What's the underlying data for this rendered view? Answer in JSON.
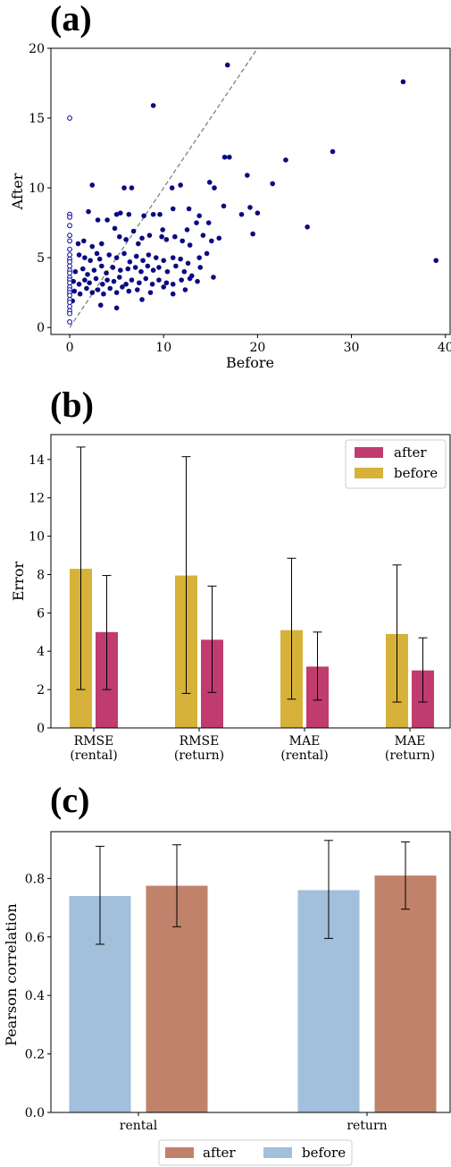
{
  "chart_data": [
    {
      "panel": "(a)",
      "type": "scatter",
      "xlabel": "Before",
      "ylabel": "After",
      "xlim": [
        -2,
        40.5
      ],
      "ylim": [
        -0.5,
        20
      ],
      "xticks": [
        0,
        10,
        20,
        30,
        40
      ],
      "yticks": [
        0,
        5,
        10,
        15,
        20
      ],
      "reference_line": "y = x (dashed, gray)",
      "colors": {
        "filled": "#0a0a82",
        "hollow_edge": "#1a1aa0"
      },
      "series": [
        {
          "marker": "filled",
          "points": [
            [
              16.8,
              18.8
            ],
            [
              35.5,
              17.6
            ],
            [
              8.9,
              15.9
            ],
            [
              28,
              12.6
            ],
            [
              16.5,
              12.2
            ],
            [
              17,
              12.2
            ],
            [
              23,
              12
            ],
            [
              18.9,
              10.9
            ],
            [
              2.4,
              10.2
            ],
            [
              5.8,
              10
            ],
            [
              6.6,
              10
            ],
            [
              10.9,
              10
            ],
            [
              11.8,
              10.2
            ],
            [
              14.9,
              10.4
            ],
            [
              21.6,
              10.3
            ],
            [
              15.4,
              10
            ],
            [
              8.9,
              8.1
            ],
            [
              9.6,
              8.1
            ],
            [
              2,
              8.3
            ],
            [
              3,
              7.7
            ],
            [
              4,
              7.7
            ],
            [
              5,
              8.1
            ],
            [
              5.4,
              8.2
            ],
            [
              6.3,
              8.1
            ],
            [
              7.9,
              8
            ],
            [
              12.7,
              8.5
            ],
            [
              13.8,
              8
            ],
            [
              14.8,
              7.5
            ],
            [
              16.4,
              8.7
            ],
            [
              18.3,
              8.1
            ],
            [
              19.2,
              8.6
            ],
            [
              20,
              8.2
            ],
            [
              13.5,
              7.5
            ],
            [
              25.3,
              7.2
            ],
            [
              19.5,
              6.7
            ],
            [
              12.5,
              7
            ],
            [
              11,
              8.5
            ],
            [
              9.9,
              7
            ],
            [
              0.9,
              6
            ],
            [
              1.5,
              6.2
            ],
            [
              2.4,
              5.8
            ],
            [
              2.9,
              5.3
            ],
            [
              3.4,
              6
            ],
            [
              4.8,
              7.1
            ],
            [
              5.3,
              6.5
            ],
            [
              6,
              6.3
            ],
            [
              6.8,
              6.9
            ],
            [
              7.3,
              6
            ],
            [
              7.7,
              6.4
            ],
            [
              8.5,
              6.6
            ],
            [
              9.8,
              6.5
            ],
            [
              10.3,
              6.3
            ],
            [
              11.2,
              6.5
            ],
            [
              12,
              6.2
            ],
            [
              12.8,
              5.9
            ],
            [
              14.2,
              6.6
            ],
            [
              15.1,
              6.2
            ],
            [
              15.9,
              6.4
            ],
            [
              1,
              5.2
            ],
            [
              1.6,
              5
            ],
            [
              2.2,
              4.8
            ],
            [
              3.2,
              4.9
            ],
            [
              4.2,
              5.2
            ],
            [
              5,
              5
            ],
            [
              5.8,
              5.3
            ],
            [
              6.4,
              4.7
            ],
            [
              7.1,
              5.1
            ],
            [
              7.8,
              4.8
            ],
            [
              8.4,
              5.2
            ],
            [
              9.2,
              5
            ],
            [
              10,
              4.8
            ],
            [
              11,
              5
            ],
            [
              11.8,
              4.9
            ],
            [
              12.6,
              4.6
            ],
            [
              13.8,
              5
            ],
            [
              14.6,
              5.3
            ],
            [
              0.6,
              4
            ],
            [
              1.4,
              4.2
            ],
            [
              1.9,
              3.8
            ],
            [
              2.6,
              4.1
            ],
            [
              3.4,
              4.4
            ],
            [
              3.9,
              3.9
            ],
            [
              4.6,
              4.3
            ],
            [
              5.4,
              4.1
            ],
            [
              6.2,
              4.2
            ],
            [
              7,
              4.3
            ],
            [
              7.6,
              4
            ],
            [
              8.3,
              4.4
            ],
            [
              8.9,
              4.1
            ],
            [
              9.5,
              4.3
            ],
            [
              10.4,
              4
            ],
            [
              11.3,
              4.4
            ],
            [
              12.2,
              4
            ],
            [
              13,
              3.7
            ],
            [
              13.9,
              4.3
            ],
            [
              0.4,
              3.3
            ],
            [
              1,
              3.1
            ],
            [
              1.6,
              3.4
            ],
            [
              2.1,
              3.2
            ],
            [
              2.8,
              3.5
            ],
            [
              3.5,
              3.1
            ],
            [
              4,
              3.4
            ],
            [
              4.7,
              3.3
            ],
            [
              5.3,
              3.6
            ],
            [
              6,
              3.1
            ],
            [
              6.6,
              3.4
            ],
            [
              7.4,
              3.2
            ],
            [
              8.1,
              3.5
            ],
            [
              8.8,
              3.1
            ],
            [
              9.5,
              3.4
            ],
            [
              10.3,
              3.2
            ],
            [
              11,
              3.1
            ],
            [
              11.9,
              3.4
            ],
            [
              12.8,
              3.5
            ],
            [
              13.6,
              3.3
            ],
            [
              15.3,
              3.6
            ],
            [
              0.5,
              2.6
            ],
            [
              1.1,
              2.4
            ],
            [
              1.8,
              2.8
            ],
            [
              2.4,
              2.5
            ],
            [
              3,
              2.7
            ],
            [
              3.6,
              2.4
            ],
            [
              4.3,
              2.8
            ],
            [
              5,
              2.5
            ],
            [
              5.6,
              2.9
            ],
            [
              6.3,
              2.6
            ],
            [
              7.2,
              2.7
            ],
            [
              8.6,
              2.5
            ],
            [
              10,
              2.9
            ],
            [
              11,
              2.4
            ],
            [
              12.3,
              2.7
            ],
            [
              0.3,
              1.9
            ],
            [
              3.3,
              1.6
            ],
            [
              5,
              1.4
            ],
            [
              7.7,
              2
            ],
            [
              39,
              4.8
            ]
          ]
        },
        {
          "marker": "hollow",
          "points": [
            [
              0,
              15
            ],
            [
              0,
              8.1
            ],
            [
              0,
              7.9
            ],
            [
              0,
              7.3
            ],
            [
              0,
              6.6
            ],
            [
              0,
              6.2
            ],
            [
              0,
              5.6
            ],
            [
              0,
              5.2
            ],
            [
              0,
              4.9
            ],
            [
              0,
              4.7
            ],
            [
              0,
              4.4
            ],
            [
              0,
              4.1
            ],
            [
              0,
              3.9
            ],
            [
              0,
              3.6
            ],
            [
              0,
              3.4
            ],
            [
              0,
              3.2
            ],
            [
              0,
              2.9
            ],
            [
              0,
              2.7
            ],
            [
              0,
              2.5
            ],
            [
              0,
              2.3
            ],
            [
              0,
              2
            ],
            [
              0,
              1.8
            ],
            [
              0,
              1.5
            ],
            [
              0,
              1.2
            ],
            [
              0,
              1
            ],
            [
              0,
              0.4
            ]
          ]
        }
      ]
    },
    {
      "panel": "(b)",
      "type": "bar",
      "ylabel": "Error",
      "ylim": [
        0,
        15.3
      ],
      "yticks": [
        0,
        2,
        4,
        6,
        8,
        10,
        12,
        14
      ],
      "categories": [
        [
          "RMSE",
          "(rental)"
        ],
        [
          "RMSE",
          "(return)"
        ],
        [
          "MAE",
          "(rental)"
        ],
        [
          "MAE",
          "(return)"
        ]
      ],
      "legend": {
        "position": "top-right"
      },
      "series": [
        {
          "name": "before",
          "color": "#d6b23a",
          "values": [
            8.3,
            7.95,
            5.1,
            4.9
          ],
          "err_low": [
            2.0,
            1.8,
            1.5,
            1.35
          ],
          "err_high": [
            14.65,
            14.15,
            8.85,
            8.5
          ]
        },
        {
          "name": "after",
          "color": "#c03c6e",
          "values": [
            5.0,
            4.6,
            3.2,
            3.0
          ],
          "err_low": [
            2.0,
            1.85,
            1.45,
            1.35
          ],
          "err_high": [
            7.95,
            7.4,
            5.0,
            4.7
          ]
        }
      ],
      "legend_order": [
        "after",
        "before"
      ]
    },
    {
      "panel": "(c)",
      "type": "bar",
      "ylabel": "Pearson correlation",
      "ylim": [
        0,
        0.96
      ],
      "yticks": [
        "0.0",
        "0.2",
        "0.4",
        "0.6",
        "0.8"
      ],
      "categories": [
        "rental",
        "return"
      ],
      "legend": {
        "position": "bottom-center"
      },
      "series": [
        {
          "name": "before",
          "color": "#a2bfdb",
          "values": [
            0.74,
            0.76
          ],
          "err_low": [
            0.575,
            0.595
          ],
          "err_high": [
            0.91,
            0.93
          ]
        },
        {
          "name": "after",
          "color": "#c0826b",
          "values": [
            0.775,
            0.81
          ],
          "err_low": [
            0.635,
            0.695
          ],
          "err_high": [
            0.915,
            0.925
          ]
        }
      ],
      "legend_order": [
        "after",
        "before"
      ]
    }
  ],
  "panel_labels": [
    "(a)",
    "(b)",
    "(c)"
  ]
}
